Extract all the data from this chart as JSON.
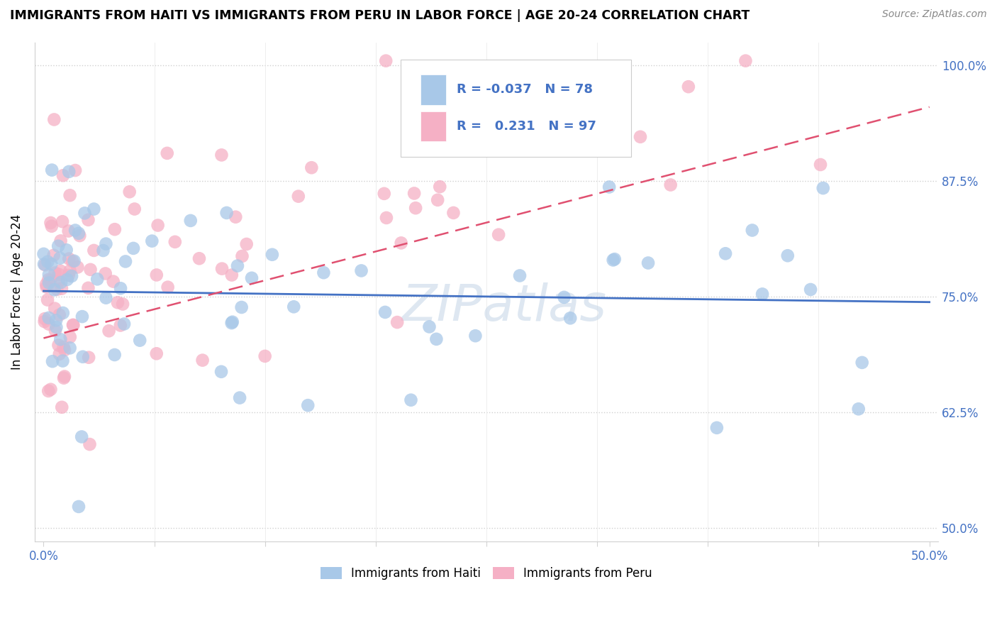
{
  "title": "IMMIGRANTS FROM HAITI VS IMMIGRANTS FROM PERU IN LABOR FORCE | AGE 20-24 CORRELATION CHART",
  "source": "Source: ZipAtlas.com",
  "ylabel": "In Labor Force | Age 20-24",
  "xlim": [
    -0.005,
    0.505
  ],
  "ylim": [
    0.485,
    1.025
  ],
  "ytick_labels": [
    "50.0%",
    "62.5%",
    "75.0%",
    "87.5%",
    "100.0%"
  ],
  "ytick_values": [
    0.5,
    0.625,
    0.75,
    0.875,
    1.0
  ],
  "xtick_values": [
    0.0,
    0.0625,
    0.125,
    0.1875,
    0.25,
    0.3125,
    0.375,
    0.4375,
    0.5
  ],
  "xtick_labels": [
    "0.0%",
    "",
    "",
    "",
    "",
    "",
    "",
    "",
    "50.0%"
  ],
  "legend_haiti_label": "Immigrants from Haiti",
  "legend_peru_label": "Immigrants from Peru",
  "haiti_R": "-0.037",
  "haiti_N": "78",
  "peru_R": "0.231",
  "peru_N": "97",
  "haiti_color": "#a8c8e8",
  "peru_color": "#f5b0c5",
  "haiti_line_color": "#4472c4",
  "peru_line_color": "#e05070",
  "watermark_color": "#c8d8e8",
  "watermark_text": "ZIPatlas"
}
